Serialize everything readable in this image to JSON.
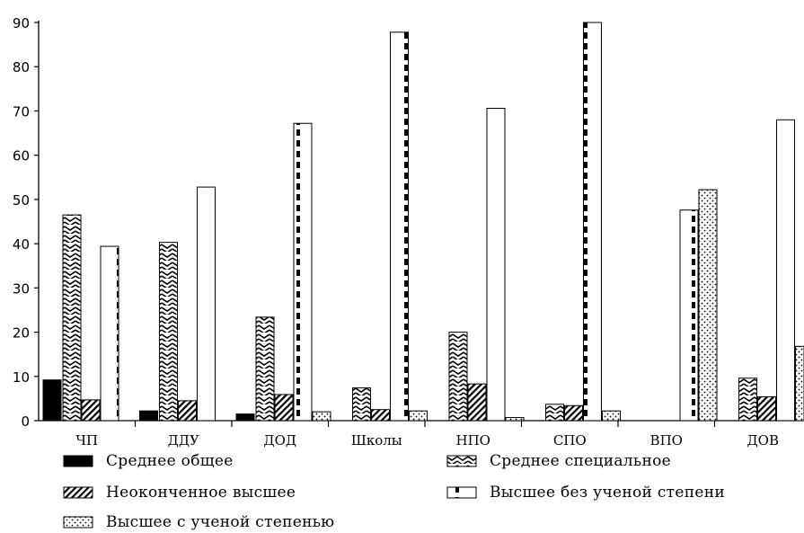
{
  "chart_data": {
    "type": "bar",
    "categories": [
      "ЧП",
      "ДДУ",
      "ДОД",
      "Школы",
      "НПО",
      "СПО",
      "ВПО",
      "ДОВ"
    ],
    "series": [
      {
        "name": "Среднее общее",
        "pattern": "solid",
        "values": [
          9.2,
          2.2,
          1.5,
          0,
          0,
          0,
          0,
          0
        ]
      },
      {
        "name": "Среднее специальное",
        "pattern": "zigzag",
        "values": [
          46.5,
          40.3,
          23.4,
          7.4,
          20.0,
          3.7,
          0,
          9.6
        ]
      },
      {
        "name": "Неоконченное высшее",
        "pattern": "diagonal",
        "values": [
          4.7,
          4.5,
          5.9,
          2.5,
          8.3,
          3.4,
          0,
          5.4
        ]
      },
      {
        "name": "Высшее без ученой степени",
        "pattern": "dashed",
        "values": [
          39.4,
          52.8,
          67.2,
          87.8,
          70.6,
          90.0,
          47.6,
          68.0
        ]
      },
      {
        "name": "Высшее с ученой степенью",
        "pattern": "dotted",
        "values": [
          0,
          0,
          2.0,
          2.2,
          0.7,
          2.2,
          52.2,
          16.8
        ]
      }
    ],
    "ylim": [
      0,
      90
    ],
    "yticks": [
      0,
      10,
      20,
      30,
      40,
      50,
      60,
      70,
      80,
      90
    ],
    "grid": false,
    "legend_position": "bottom",
    "colors": {
      "bar_edge": "#000000",
      "fill": "#ffffff"
    }
  }
}
